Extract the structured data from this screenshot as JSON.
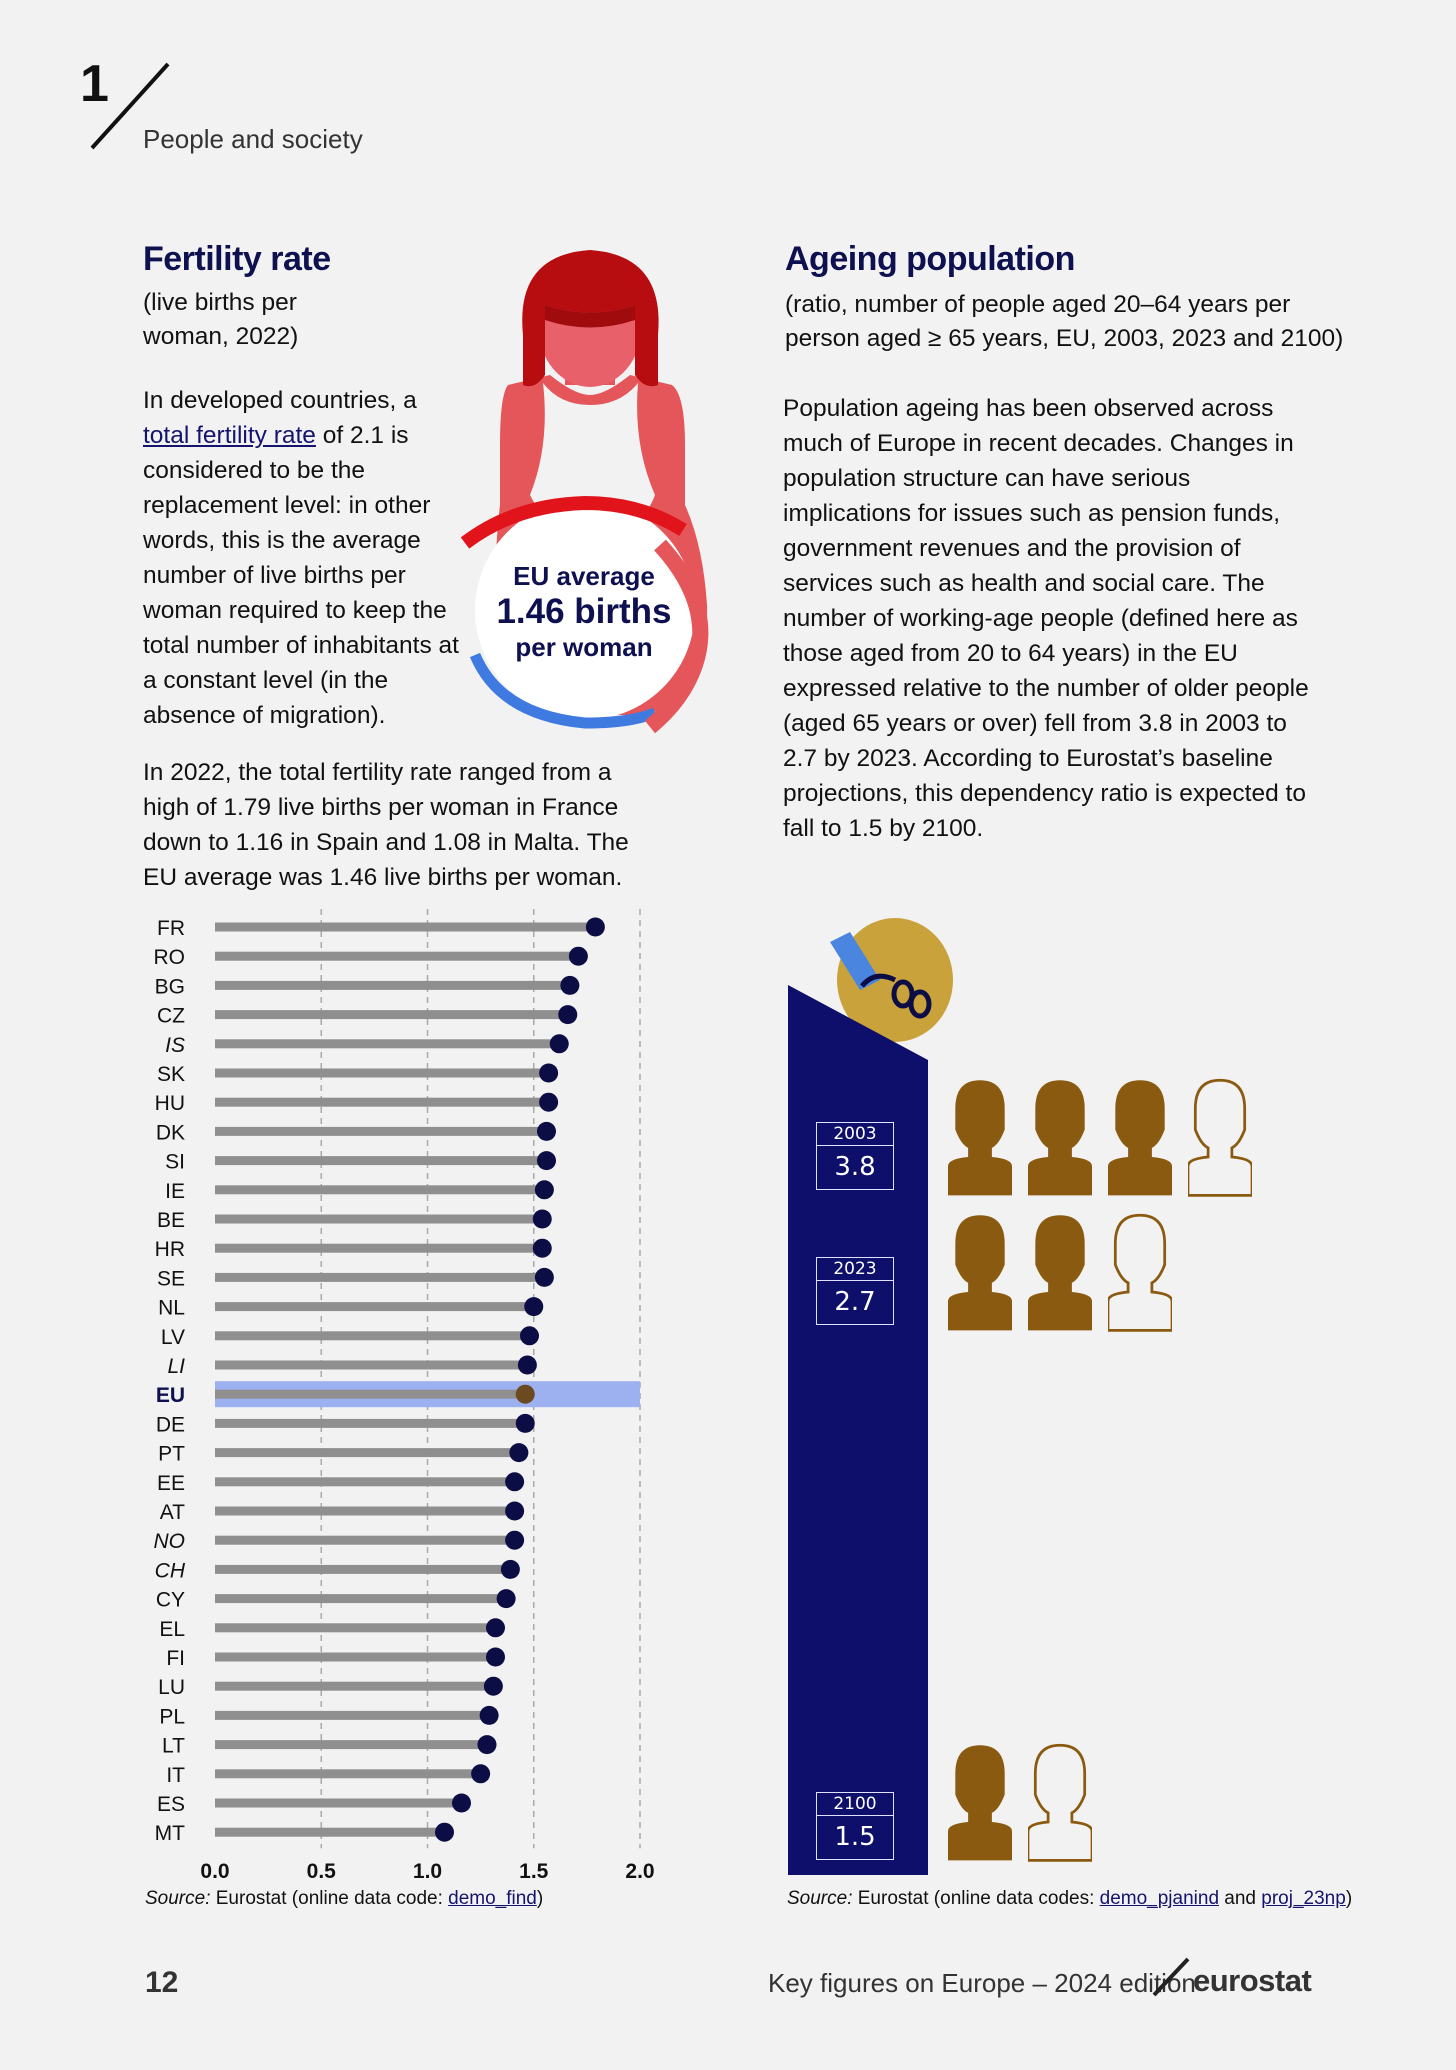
{
  "header": {
    "chapter_number": "1",
    "chapter_title": "People and society"
  },
  "fertility": {
    "title": "Fertility rate",
    "subtitle": "(live births per woman, 2022)",
    "p1_before": "In developed countries, a ",
    "p1_link": "total fertility rate",
    "p1_after": " of 2.1 is considered to be the replacement level: in other words, this is the average number of live births per woman required to keep the total number of inhabitants at a constant level (in the absence of migration).",
    "p2": "In 2022, the total fertility rate ranged from a high of 1.79 live births per woman in France down to 1.16 in Spain and 1.08 in Malta. The EU average was 1.46 live births per woman.",
    "badge": {
      "line1": "EU average",
      "line2": "1.46 births",
      "line3": "per woman"
    },
    "source_label": "Source:",
    "source_text": " Eurostat (online data code: ",
    "source_link": "demo_find",
    "source_end": ")"
  },
  "ageing": {
    "title": "Ageing population",
    "subtitle": "(ratio, number of people aged 20–64 years per person aged ≥ 65 years, EU, 2003, 2023 and 2100)",
    "p1": "Population ageing has been observed across much of Europe in recent decades. Changes in population structure can have serious implications for issues such as pension funds, government revenues and the provision of services such as health and social care. The number of working-age people (defined here as those aged from 20 to 64 years) in the EU expressed relative to the number of older people (aged 65 years or over) fell from 3.8 in 2003 to 2.7 by 2023. According to Eurostat’s baseline projections, this dependency ratio is expected to fall to 1.5 by 2100.",
    "source_label": "Source:",
    "source_text": " Eurostat (online data codes: ",
    "source_link1": "demo_pjanind",
    "source_and": " and ",
    "source_link2": "proj_23np",
    "source_end": ")"
  },
  "footer": {
    "page_number": "12",
    "publication": "Key figures on Europe – 2024 edition",
    "brand": "eurostat"
  },
  "colors": {
    "navy": "#0e0f6b",
    "dot": "#0d0d45",
    "bar": "#8f8f8f",
    "highlight": "#9db0ef",
    "eu_dot": "#6b4a1f",
    "person": "#8a5a10",
    "woman_red": "#e4565a",
    "hair": "#b80d10",
    "blue_arc": "#3f7ae0"
  },
  "chart_data": [
    {
      "type": "bar",
      "style": "lollipop-horizontal",
      "title": "Fertility rate",
      "xlabel": "",
      "ylabel": "",
      "xlim": [
        0,
        2.0
      ],
      "xticks": [
        "0.0",
        "0.5",
        "1.0",
        "1.5",
        "2.0"
      ],
      "highlight": "EU",
      "italic_categories": [
        "IS",
        "LI",
        "NO",
        "CH"
      ],
      "categories": [
        "FR",
        "RO",
        "BG",
        "CZ",
        "IS",
        "SK",
        "HU",
        "DK",
        "SI",
        "IE",
        "BE",
        "HR",
        "SE",
        "NL",
        "LV",
        "LI",
        "EU",
        "DE",
        "PT",
        "EE",
        "AT",
        "NO",
        "CH",
        "CY",
        "EL",
        "FI",
        "LU",
        "PL",
        "LT",
        "IT",
        "ES",
        "MT"
      ],
      "values": [
        1.79,
        1.71,
        1.67,
        1.66,
        1.62,
        1.57,
        1.57,
        1.56,
        1.56,
        1.55,
        1.54,
        1.54,
        1.55,
        1.5,
        1.48,
        1.47,
        1.46,
        1.46,
        1.43,
        1.41,
        1.41,
        1.41,
        1.39,
        1.37,
        1.32,
        1.32,
        1.31,
        1.29,
        1.28,
        1.25,
        1.16,
        1.08
      ]
    },
    {
      "type": "bar",
      "style": "pictogram",
      "title": "Ageing population",
      "categories": [
        "2003",
        "2023",
        "2100"
      ],
      "labels": [
        "3.8",
        "2.7",
        "1.5"
      ],
      "values": [
        3.8,
        2.7,
        1.5
      ]
    }
  ]
}
